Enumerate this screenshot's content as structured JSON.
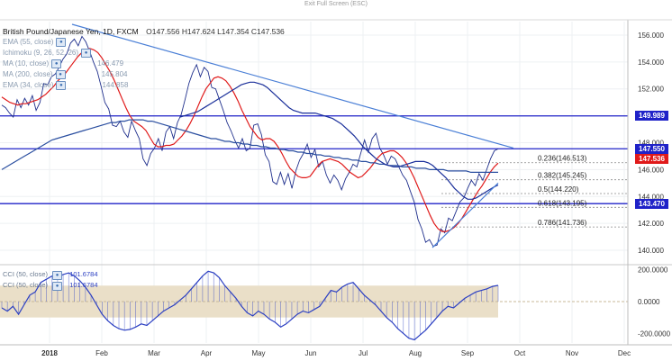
{
  "topbar": {
    "exit_label": "Exit Full Screen (ESC)"
  },
  "header": {
    "symbol": "British Pound/Japanese Yen, 1D, FXCM",
    "ohlc": {
      "open": "O147.556",
      "high": "H147.624",
      "low": "L147.354",
      "close": "C147.536"
    }
  },
  "indicators": [
    {
      "label": "EMA (55, close)",
      "value": ""
    },
    {
      "label": "Ichimoku (9, 26, 52, 26)",
      "value": ""
    },
    {
      "label": "MA (10, close)",
      "value": "146.479"
    },
    {
      "label": "MA (200, close)",
      "value": "145.804"
    },
    {
      "label": "EMA (34, close)",
      "value": "144.858"
    }
  ],
  "oscillator": {
    "rows": [
      {
        "label": "CCI (50, close)",
        "value": "101.6784"
      },
      {
        "label": "CCI (50, close)",
        "value": "101.6784"
      }
    ],
    "axis": [
      "200.0000",
      "0.0000",
      "-200.0000"
    ]
  },
  "price_labels": {
    "resistance": "149.989",
    "support": "143.470",
    "level_mid": "147.550",
    "current": "147.536"
  },
  "fib_levels": [
    {
      "label": "0.236(146.513)",
      "value": 146.513
    },
    {
      "label": "0.382(145.245)",
      "value": 145.245
    },
    {
      "label": "0.5(144.220)",
      "value": 144.22
    },
    {
      "label": "0.618(143.195)",
      "value": 143.195
    },
    {
      "label": "0.786(141.736)",
      "value": 141.736
    }
  ],
  "colors": {
    "resistance_line": "#1f22c8",
    "ma10": "#e01a1a",
    "trendline": "#4a7fd6",
    "current_price_box": "#e01a1a",
    "level_box": "#1f22c8",
    "cci": "#2b3fc2",
    "cci_band": "#eadfc8"
  },
  "chart_data": {
    "type": "line",
    "title": "British Pound/Japanese Yen, 1D, FXCM",
    "x_axis_labels": [
      "2018",
      "Feb",
      "Mar",
      "Apr",
      "May",
      "Jun",
      "Jul",
      "Aug",
      "Sep",
      "Oct",
      "Nov",
      "Dec"
    ],
    "y_axis_labels": [
      "156.000",
      "154.000",
      "152.000",
      "150.000",
      "148.000",
      "146.000",
      "144.000",
      "142.000",
      "140.000"
    ],
    "ylim": [
      139.0,
      157.0
    ],
    "series": [
      {
        "name": "Close",
        "values": [
          150.8,
          150.6,
          150.2,
          149.9,
          151.2,
          150.6,
          151.3,
          150.8,
          151.5,
          150.4,
          151.0,
          152.4,
          152.3,
          152.9,
          153.1,
          153.6,
          154.2,
          154.6,
          155.4,
          155.7,
          155.2,
          155.9,
          155.5,
          154.8,
          154.0,
          153.3,
          152.2,
          151.0,
          150.5,
          149.3,
          149.2,
          149.6,
          148.8,
          148.4,
          149.6,
          148.9,
          148.3,
          146.8,
          146.3,
          147.2,
          147.6,
          148.3,
          147.4,
          148.8,
          149.2,
          148.3,
          149.5,
          150.1,
          151.2,
          152.4,
          153.2,
          153.8,
          152.9,
          153.6,
          153.3,
          152.1,
          152.0,
          151.2,
          150.4,
          149.5,
          148.9,
          148.2,
          147.6,
          148.3,
          147.4,
          147.6,
          149.3,
          149.4,
          148.6,
          147.1,
          146.6,
          145.1,
          144.9,
          145.8,
          144.9,
          145.7,
          144.6,
          145.9,
          146.7,
          147.2,
          147.9,
          146.9,
          147.5,
          146.2,
          146.6,
          145.6,
          145.0,
          145.6,
          145.2,
          144.5,
          145.3,
          145.8,
          146.4,
          146.2,
          147.2,
          148.2,
          147.3,
          148.3,
          148.7,
          147.6,
          147.1,
          146.4,
          147.0,
          146.8,
          146.2,
          145.6,
          145.2,
          144.4,
          143.6,
          142.3,
          141.6,
          140.6,
          140.8,
          140.3,
          140.4,
          141.6,
          141.3,
          142.4,
          142.2,
          142.9,
          143.6,
          143.9,
          144.6,
          145.2,
          144.8,
          145.7,
          145.2,
          146.0,
          146.8,
          147.4,
          147.536
        ]
      },
      {
        "name": "MA (10, close)",
        "values": [
          151.4,
          151.2,
          151.0,
          150.9,
          150.8,
          150.9,
          150.9,
          151.0,
          151.1,
          151.2,
          151.4,
          151.6,
          151.9,
          152.2,
          152.6,
          152.9,
          153.2,
          153.6,
          154.0,
          154.4,
          154.7,
          154.9,
          155.0,
          154.9,
          154.7,
          154.3,
          153.8,
          153.3,
          152.7,
          152.0,
          151.3,
          150.6,
          150.0,
          149.6,
          149.4,
          149.2,
          148.9,
          148.4,
          147.9,
          147.7,
          147.7,
          147.8,
          147.8,
          147.9,
          148.2,
          148.5,
          148.9,
          149.4,
          150.0,
          150.7,
          151.4,
          152.0,
          152.4,
          152.8,
          152.9,
          152.8,
          152.6,
          152.2,
          151.7,
          151.1,
          150.4,
          149.8,
          149.2,
          148.8,
          148.4,
          148.2,
          148.3,
          148.3,
          148.1,
          147.7,
          147.2,
          146.6,
          146.1,
          145.8,
          145.5,
          145.4,
          145.4,
          145.5,
          145.9,
          146.3,
          146.6,
          146.7,
          146.8,
          146.7,
          146.6,
          146.4,
          146.1,
          145.8,
          145.6,
          145.4,
          145.5,
          145.8,
          146.1,
          146.5,
          146.9,
          147.2,
          147.3,
          147.4,
          147.4,
          147.2,
          146.9,
          146.5,
          146.0,
          145.4,
          144.7,
          144.0,
          143.3,
          142.6,
          142.0,
          141.6,
          141.4,
          141.4,
          141.5,
          141.7,
          142.0,
          142.4,
          142.9,
          143.4,
          143.9,
          144.4,
          144.8,
          145.3,
          145.8,
          146.2,
          146.479
        ]
      },
      {
        "name": "MA (200, close)",
        "values": [
          146.0,
          146.2,
          146.4,
          146.6,
          146.8,
          147.0,
          147.2,
          147.4,
          147.6,
          147.8,
          148.0,
          148.2,
          148.3,
          148.4,
          148.5,
          148.6,
          148.7,
          148.8,
          148.9,
          149.0,
          149.1,
          149.2,
          149.3,
          149.4,
          149.5,
          149.5,
          149.6,
          149.6,
          149.7,
          149.7,
          149.7,
          149.7,
          149.6,
          149.6,
          149.5,
          149.4,
          149.3,
          149.2,
          149.1,
          149.0,
          148.9,
          148.8,
          148.7,
          148.6,
          148.5,
          148.4,
          148.3,
          148.3,
          148.2,
          148.1,
          148.1,
          148.0,
          148.0,
          147.9,
          147.9,
          147.8,
          147.8,
          147.7,
          147.7,
          147.6,
          147.6,
          147.5,
          147.5,
          147.4,
          147.4,
          147.3,
          147.3,
          147.2,
          147.2,
          147.1,
          147.1,
          147.0,
          147.0,
          146.9,
          146.9,
          146.8,
          146.8,
          146.7,
          146.7,
          146.6,
          146.6,
          146.5,
          146.5,
          146.4,
          146.4,
          146.3,
          146.3,
          146.3,
          146.2,
          146.2,
          146.2,
          146.1,
          146.1,
          146.1,
          146.0,
          146.0,
          146.0,
          146.0,
          145.9,
          145.9,
          145.9,
          145.9,
          145.9,
          145.8,
          145.8,
          145.8,
          145.8,
          145.8,
          145.8,
          145.8
        ]
      },
      {
        "name": "EMA (34, close)",
        "values": [
          149.9,
          150.0,
          150.1,
          150.2,
          150.3,
          150.5,
          150.7,
          150.9,
          151.1,
          151.3,
          151.5,
          151.7,
          151.9,
          152.1,
          152.3,
          152.4,
          152.5,
          152.5,
          152.4,
          152.3,
          152.1,
          151.8,
          151.5,
          151.2,
          150.9,
          150.6,
          150.4,
          150.3,
          150.2,
          150.2,
          150.2,
          150.2,
          150.1,
          150.0,
          149.9,
          149.8,
          149.6,
          149.4,
          149.1,
          148.8,
          148.5,
          148.1,
          147.7,
          147.4,
          147.1,
          146.8,
          146.6,
          146.4,
          146.3,
          146.2,
          146.2,
          146.3,
          146.4,
          146.5,
          146.6,
          146.6,
          146.6,
          146.5,
          146.3,
          146.0,
          145.7,
          145.4,
          145.0,
          144.6,
          144.3,
          144.0,
          143.8,
          143.8,
          143.9,
          144.1,
          144.3,
          144.5,
          144.7,
          144.858
        ]
      },
      {
        "name": "CCI (50, close)",
        "values": [
          -40,
          -60,
          -30,
          -80,
          -20,
          40,
          60,
          120,
          140,
          160,
          150,
          170,
          180,
          160,
          130,
          90,
          40,
          -20,
          -80,
          -120,
          -150,
          -170,
          -180,
          -175,
          -160,
          -140,
          -150,
          -120,
          -90,
          -60,
          -40,
          -20,
          10,
          40,
          80,
          120,
          160,
          190,
          180,
          150,
          100,
          60,
          20,
          -30,
          -70,
          -90,
          -60,
          -80,
          -110,
          -130,
          -160,
          -140,
          -110,
          -80,
          -60,
          -70,
          -50,
          -30,
          20,
          70,
          60,
          90,
          110,
          120,
          80,
          40,
          10,
          -20,
          -60,
          -100,
          -130,
          -170,
          -200,
          -230,
          -240,
          -210,
          -180,
          -140,
          -100,
          -60,
          -30,
          -40,
          -10,
          20,
          40,
          60,
          70,
          80,
          95,
          101.6784
        ]
      }
    ],
    "trendline": {
      "from": [
        0,
        156.8
      ],
      "to": [
        130,
        147.6
      ]
    },
    "horizontal_levels": [
      149.989,
      147.55,
      143.47
    ],
    "fibonacci": [
      146.513,
      145.245,
      144.22,
      143.195,
      141.736
    ],
    "oscillator_ylim": [
      -260,
      220
    ],
    "oscillator_band": [
      -100,
      100
    ],
    "grid": true,
    "legend_position": "top-left"
  }
}
